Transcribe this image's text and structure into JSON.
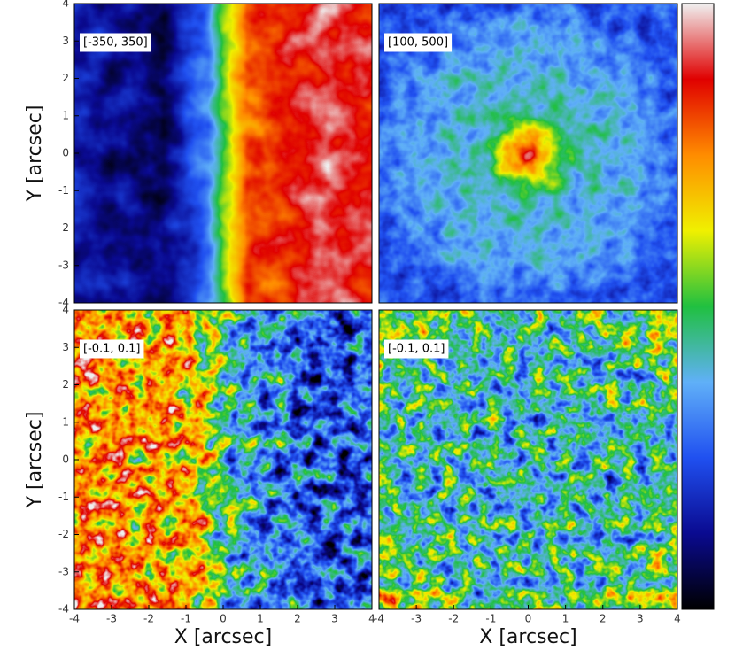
{
  "chart_data": [
    {
      "type": "heatmap",
      "annotation": "[-350, 350]",
      "y_label": "Y [arcsec]",
      "xlim": [
        -4,
        4
      ],
      "ylim": [
        -4,
        4
      ],
      "yticks": [
        -4,
        -3,
        -2,
        -1,
        0,
        1,
        2,
        3,
        4
      ]
    },
    {
      "type": "heatmap",
      "annotation": "[100, 500]",
      "xlim": [
        -4,
        4
      ],
      "ylim": [
        -4,
        4
      ]
    },
    {
      "type": "heatmap",
      "annotation": "[-0.1, 0.1]",
      "x_label": "X [arcsec]",
      "y_label": "Y [arcsec]",
      "xlim": [
        -4,
        4
      ],
      "ylim": [
        -4,
        4
      ],
      "xticks": [
        -4,
        -3,
        -2,
        -1,
        0,
        1,
        2,
        3,
        4
      ],
      "yticks": [
        -4,
        -3,
        -2,
        -1,
        0,
        1,
        2,
        3,
        4
      ]
    },
    {
      "type": "heatmap",
      "annotation": "[-0.1, 0.1]",
      "x_label": "X [arcsec]",
      "xlim": [
        -4,
        4
      ],
      "ylim": [
        -4,
        4
      ],
      "xticks": [
        -4,
        -3,
        -2,
        -1,
        0,
        1,
        2,
        3,
        4
      ]
    }
  ],
  "colorbar": {
    "colors": [
      "#000000",
      "#0a0a90",
      "#2050f0",
      "#60b0f8",
      "#20c040",
      "#f0f000",
      "#ff8c00",
      "#e00000",
      "#f0f0f0"
    ]
  }
}
